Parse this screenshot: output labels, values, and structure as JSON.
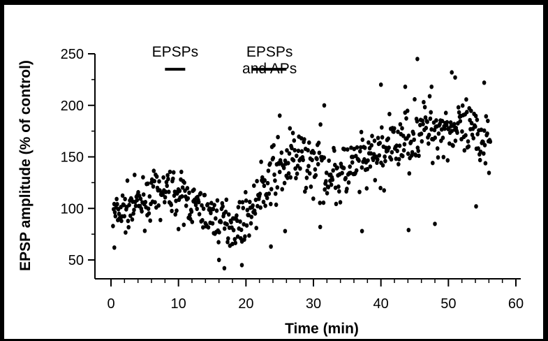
{
  "colors": {
    "background": "#ffffff",
    "frame": "#000000",
    "ink": "#000000"
  },
  "chart_data": {
    "type": "scatter",
    "title": "",
    "xlabel": "Time (min)",
    "ylabel": "EPSP amplitude (% of control)",
    "xlim": [
      0,
      60
    ],
    "ylim": [
      40,
      250
    ],
    "xticks": [
      0,
      10,
      20,
      30,
      40,
      50,
      60
    ],
    "yticks": [
      50,
      100,
      150,
      200,
      250
    ],
    "grid": false,
    "legend": "none",
    "annotations": [
      {
        "lines": [
          "EPSPs"
        ],
        "bar_x": [
          8,
          11
        ],
        "bar_y": 235
      },
      {
        "lines": [
          "EPSPs",
          "and APs"
        ],
        "bar_x": [
          21,
          26
        ],
        "bar_y": 235
      }
    ],
    "trend": [
      [
        0,
        92
      ],
      [
        5,
        108
      ],
      [
        9,
        118
      ],
      [
        12,
        105
      ],
      [
        16,
        88
      ],
      [
        19,
        85
      ],
      [
        21,
        100
      ],
      [
        24,
        132
      ],
      [
        27,
        148
      ],
      [
        30,
        143
      ],
      [
        34,
        132
      ],
      [
        38,
        145
      ],
      [
        42,
        160
      ],
      [
        46,
        178
      ],
      [
        50,
        178
      ],
      [
        54,
        170
      ],
      [
        56,
        168
      ]
    ],
    "outliers": [
      [
        45.4,
        245
      ],
      [
        50.5,
        232
      ],
      [
        51.0,
        227
      ],
      [
        47.5,
        218
      ],
      [
        55.3,
        222
      ],
      [
        31.6,
        200
      ],
      [
        25.0,
        190
      ],
      [
        40.0,
        220
      ],
      [
        43.6,
        218
      ],
      [
        16.0,
        50
      ],
      [
        16.8,
        42
      ],
      [
        19.4,
        45
      ],
      [
        23.7,
        63
      ],
      [
        31.0,
        82
      ],
      [
        37.2,
        78
      ],
      [
        44.1,
        79
      ],
      [
        48.0,
        85
      ],
      [
        54.1,
        102
      ],
      [
        10.0,
        80
      ],
      [
        25.8,
        78
      ],
      [
        0.5,
        62
      ]
    ],
    "n_points": 630,
    "spread": 17
  }
}
